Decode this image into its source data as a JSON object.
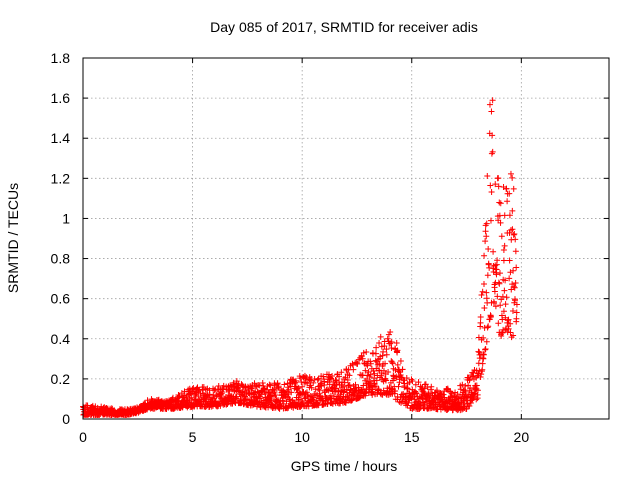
{
  "chart_data": {
    "type": "scatter",
    "title": "Day 085 of 2017, SRMTID for receiver adis",
    "xlabel": "GPS time / hours",
    "ylabel": "SRMTID / TECUs",
    "xlim": [
      0,
      24
    ],
    "ylim": [
      0,
      1.8
    ],
    "xticks": [
      "0",
      "5",
      "10",
      "15",
      "20"
    ],
    "yticks": [
      "0",
      "0.2",
      "0.4",
      "0.6",
      "0.8",
      "1",
      "1.2",
      "1.4",
      "1.6",
      "1.8"
    ],
    "grid": true,
    "marker": "plus",
    "series": [
      {
        "name": "SRMTID",
        "color": "#ff0000",
        "envelope": {
          "description": "approximate envelope of the plotted points (hours, TECU)",
          "x": [
            0.0,
            1.0,
            2.0,
            2.5,
            3.0,
            3.5,
            4.0,
            5.0,
            6.0,
            7.0,
            8.0,
            9.0,
            10.0,
            11.0,
            12.0,
            12.5,
            13.0,
            13.5,
            14.0,
            14.5,
            15.0,
            16.0,
            17.0,
            17.5,
            18.0,
            18.3,
            18.6,
            18.8,
            19.0,
            19.3,
            19.6,
            19.8
          ],
          "low": [
            0.02,
            0.02,
            0.02,
            0.03,
            0.05,
            0.05,
            0.05,
            0.06,
            0.06,
            0.08,
            0.06,
            0.05,
            0.06,
            0.07,
            0.08,
            0.1,
            0.12,
            0.12,
            0.12,
            0.08,
            0.05,
            0.05,
            0.04,
            0.05,
            0.1,
            0.3,
            0.5,
            0.6,
            0.4,
            0.45,
            0.38,
            0.5
          ],
          "high": [
            0.07,
            0.06,
            0.05,
            0.06,
            0.1,
            0.1,
            0.1,
            0.16,
            0.16,
            0.19,
            0.18,
            0.18,
            0.22,
            0.22,
            0.25,
            0.3,
            0.35,
            0.4,
            0.48,
            0.32,
            0.2,
            0.16,
            0.15,
            0.2,
            0.28,
            0.9,
            1.67,
            1.55,
            1.1,
            1.2,
            1.25,
            0.95
          ]
        },
        "n_points": 1900
      }
    ]
  }
}
